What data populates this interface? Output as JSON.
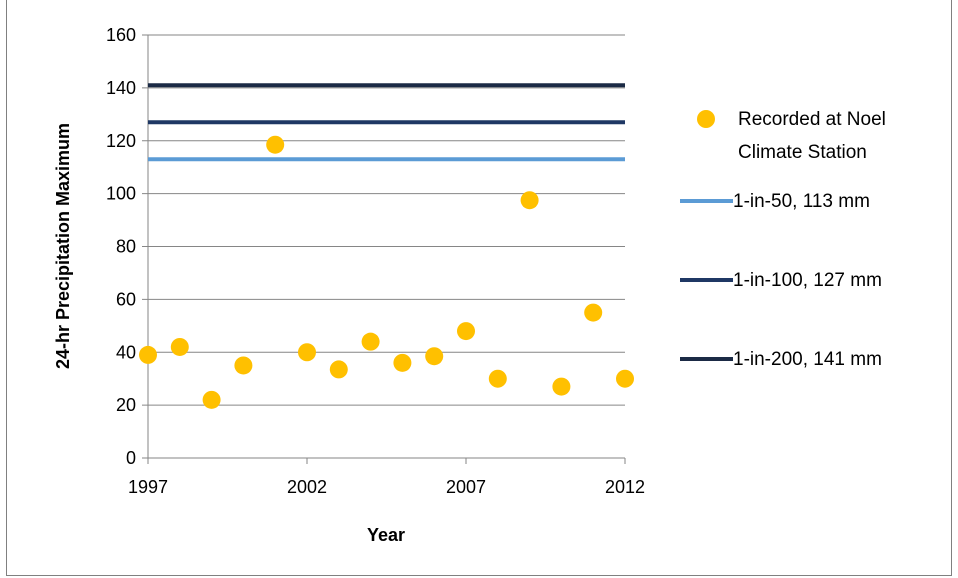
{
  "chart_data": {
    "type": "scatter",
    "xlabel": "Year",
    "ylabel": "24-hr Precipitation Maximum",
    "xlim": [
      1997,
      2012
    ],
    "ylim": [
      0,
      160
    ],
    "x_ticks": [
      "1997",
      "2002",
      "2007",
      "2012"
    ],
    "x_tick_values": [
      1997,
      2002,
      2007,
      2012
    ],
    "y_ticks": [
      "0",
      "20",
      "40",
      "60",
      "80",
      "100",
      "120",
      "140",
      "160"
    ],
    "y_tick_values": [
      0,
      20,
      40,
      60,
      80,
      100,
      120,
      140,
      160
    ],
    "grid": "horizontal",
    "legend_position": "right",
    "series": [
      {
        "name": "Recorded at Noel Climate Station",
        "legend_lines": [
          "Recorded at Noel",
          "Climate Station"
        ],
        "kind": "points",
        "color": "#FFC000",
        "x": [
          1997,
          1998,
          1999,
          2000,
          2001,
          2002,
          2003,
          2004,
          2005,
          2006,
          2007,
          2008,
          2009,
          2010,
          2011,
          2012
        ],
        "y": [
          39,
          42,
          22,
          35,
          118.5,
          40,
          33.5,
          44,
          36,
          38.5,
          48,
          30,
          97.5,
          27,
          55,
          30
        ]
      },
      {
        "name": "1-in-50, 113 mm",
        "kind": "hline",
        "color": "#5B9BD5",
        "y": 113
      },
      {
        "name": "1-in-100, 127 mm",
        "kind": "hline",
        "color": "#1F3864",
        "y": 127
      },
      {
        "name": "1-in-200, 141 mm",
        "kind": "hline",
        "color": "#1B2A45",
        "y": 141
      }
    ]
  }
}
